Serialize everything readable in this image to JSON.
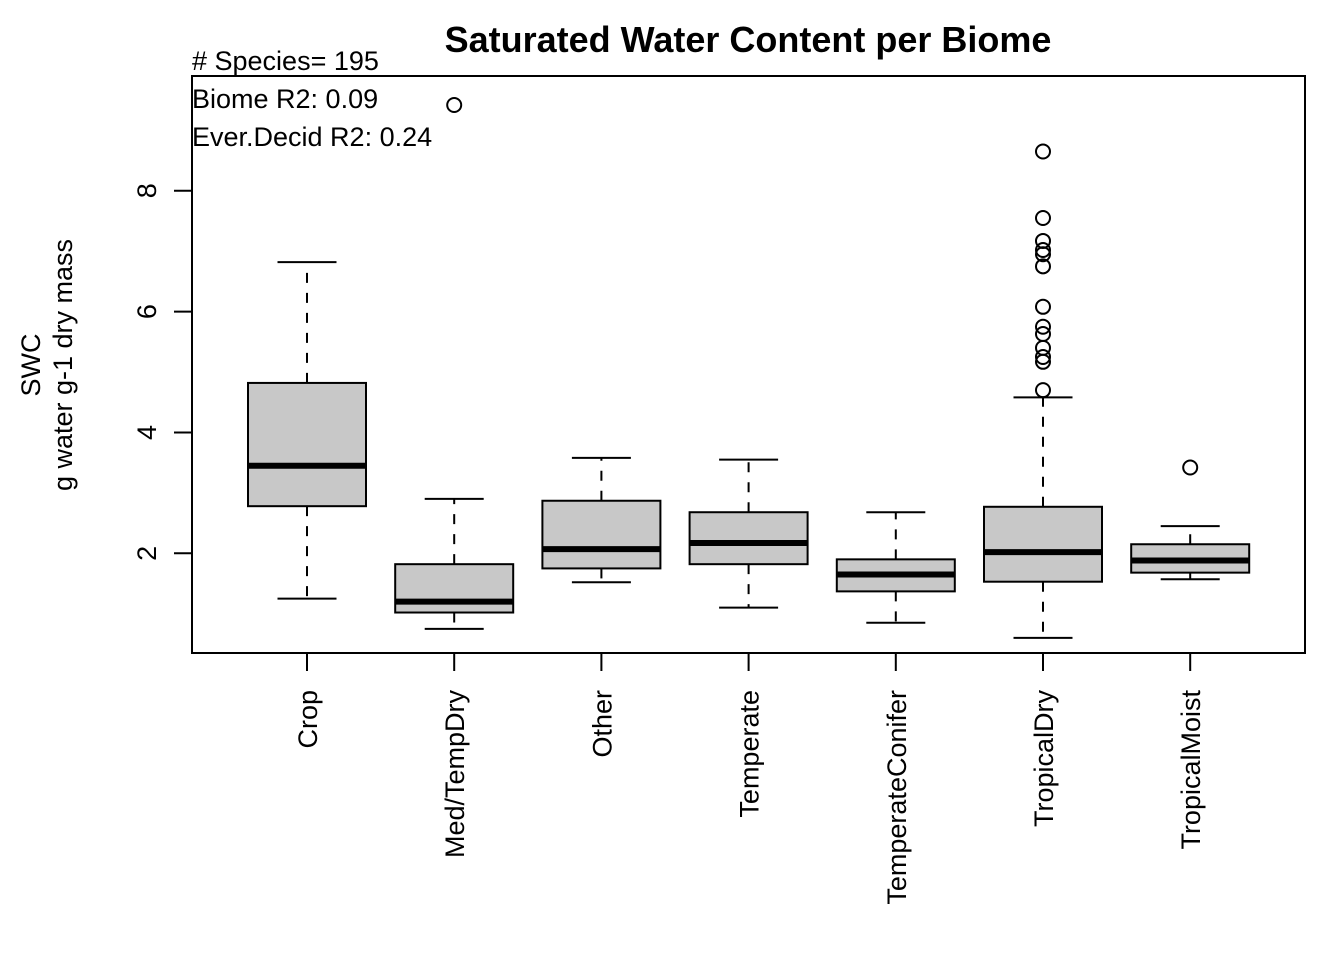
{
  "chart_data": {
    "type": "box",
    "title": "Saturated Water Content per Biome",
    "ylabel_lines": [
      "SWC",
      "g water g-1 dry mass"
    ],
    "annotations": [
      "# Species= 195",
      "Biome R2: 0.09",
      "Ever.Decid R2: 0.24"
    ],
    "ylim": [
      0.35,
      9.9
    ],
    "yticks": [
      2,
      4,
      6,
      8
    ],
    "categories": [
      "Crop",
      "Med/TempDry",
      "Other",
      "Temperate",
      "TemperateConifer",
      "TropicalDry",
      "TropicalMoist"
    ],
    "boxes": [
      {
        "category": "Crop",
        "whisker_low": 1.25,
        "q1": 2.78,
        "median": 3.45,
        "q3": 4.82,
        "whisker_high": 6.82,
        "outliers": []
      },
      {
        "category": "Med/TempDry",
        "whisker_low": 0.75,
        "q1": 1.02,
        "median": 1.2,
        "q3": 1.82,
        "whisker_high": 2.9,
        "outliers": [
          9.42
        ]
      },
      {
        "category": "Other",
        "whisker_low": 1.52,
        "q1": 1.75,
        "median": 2.07,
        "q3": 2.87,
        "whisker_high": 3.58,
        "outliers": []
      },
      {
        "category": "Temperate",
        "whisker_low": 1.1,
        "q1": 1.82,
        "median": 2.17,
        "q3": 2.68,
        "whisker_high": 3.55,
        "outliers": []
      },
      {
        "category": "TemperateConifer",
        "whisker_low": 0.85,
        "q1": 1.37,
        "median": 1.65,
        "q3": 1.9,
        "whisker_high": 2.68,
        "outliers": []
      },
      {
        "category": "TropicalDry",
        "whisker_low": 0.6,
        "q1": 1.53,
        "median": 2.02,
        "q3": 2.77,
        "whisker_high": 4.58,
        "outliers": [
          4.7,
          5.17,
          5.25,
          5.4,
          5.63,
          5.75,
          6.08,
          6.75,
          6.95,
          7.02,
          7.17,
          7.55,
          8.65
        ]
      },
      {
        "category": "TropicalMoist",
        "whisker_low": 1.57,
        "q1": 1.68,
        "median": 1.88,
        "q3": 2.15,
        "whisker_high": 2.45,
        "outliers": [
          3.42
        ]
      }
    ],
    "colors": {
      "box_fill": "#c8c8c8",
      "stroke": "#000000"
    },
    "grid": false,
    "legend": "none"
  }
}
